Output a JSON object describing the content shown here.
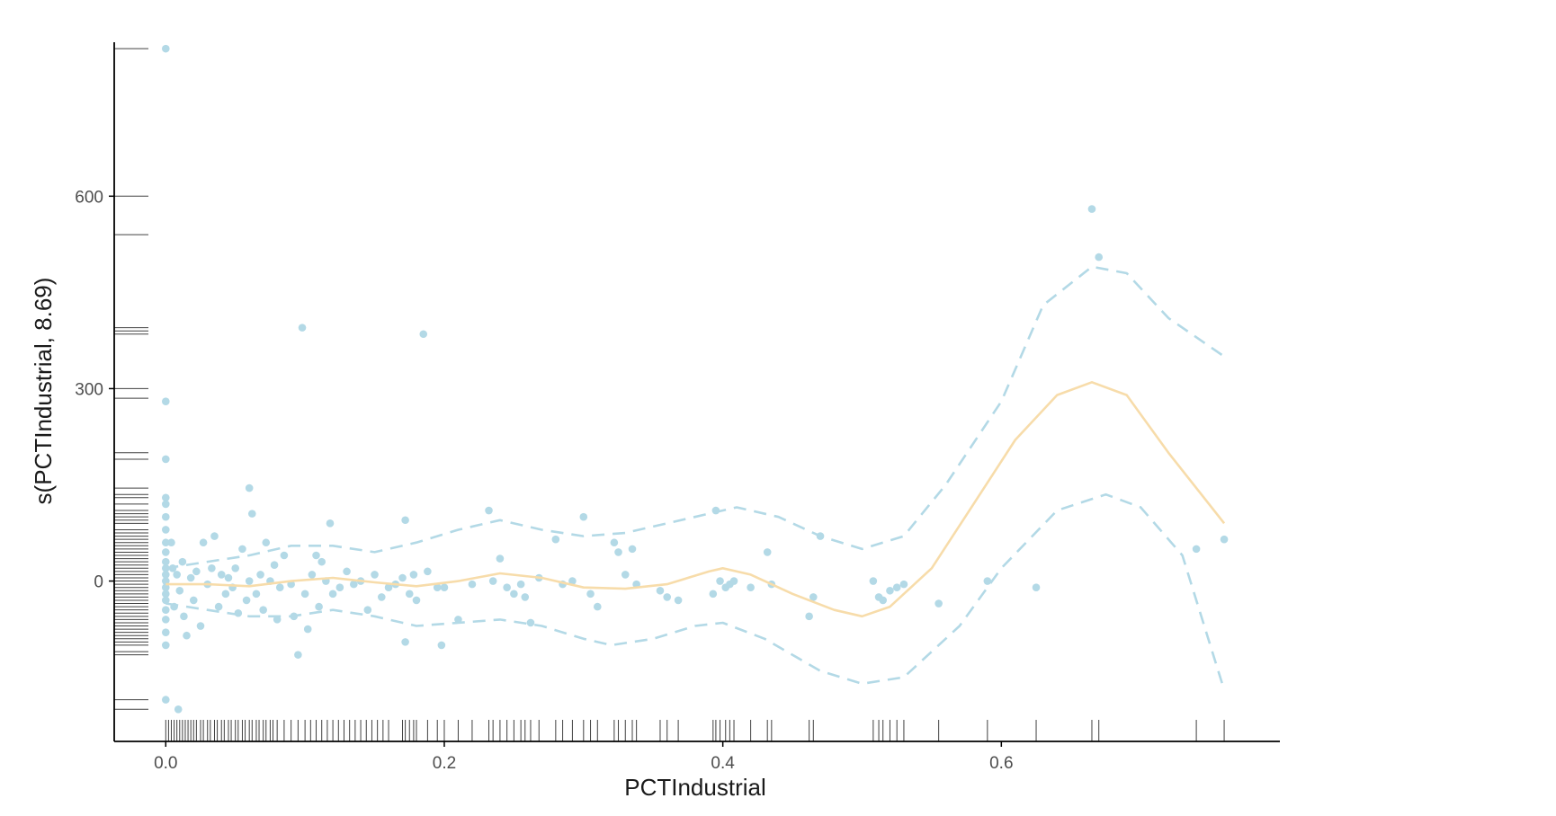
{
  "chart_data": {
    "type": "scatter",
    "title": "",
    "xlabel": "PCTIndustrial",
    "ylabel": "s(PCTIndustrial, 8.69)",
    "xlim": [
      -0.037,
      0.8
    ],
    "ylim": [
      -250,
      840
    ],
    "x_ticks": [
      {
        "value": 0.0,
        "label": "0.0"
      },
      {
        "value": 0.2,
        "label": "0.2"
      },
      {
        "value": 0.4,
        "label": "0.4"
      },
      {
        "value": 0.6,
        "label": "0.6"
      }
    ],
    "y_ticks": [
      {
        "value": 0,
        "label": "0"
      },
      {
        "value": 300,
        "label": "300"
      },
      {
        "value": 600,
        "label": "600"
      }
    ],
    "grid": false,
    "legend": "none",
    "colors": {
      "points": "#b3d9e6",
      "smooth": "#f7dcaa",
      "confidence": "#b3d9e6",
      "rug": "#000000",
      "axis": "#000000"
    },
    "series": [
      {
        "kind": "partial-residual-points",
        "points": [
          [
            0.0,
            830
          ],
          [
            0.0,
            280
          ],
          [
            0.0,
            190
          ],
          [
            0.0,
            130
          ],
          [
            0.0,
            120
          ],
          [
            0.0,
            100
          ],
          [
            0.0,
            80
          ],
          [
            0.0,
            60
          ],
          [
            0.0,
            45
          ],
          [
            0.0,
            30
          ],
          [
            0.0,
            20
          ],
          [
            0.0,
            10
          ],
          [
            0.0,
            0
          ],
          [
            0.0,
            -10
          ],
          [
            0.0,
            -20
          ],
          [
            0.0,
            -30
          ],
          [
            0.0,
            -45
          ],
          [
            0.0,
            -60
          ],
          [
            0.0,
            -80
          ],
          [
            0.0,
            -100
          ],
          [
            0.0,
            -185
          ],
          [
            0.009,
            -200
          ],
          [
            0.004,
            60
          ],
          [
            0.005,
            20
          ],
          [
            0.006,
            -40
          ],
          [
            0.008,
            10
          ],
          [
            0.01,
            -15
          ],
          [
            0.012,
            30
          ],
          [
            0.013,
            -55
          ],
          [
            0.015,
            -85
          ],
          [
            0.018,
            5
          ],
          [
            0.02,
            -30
          ],
          [
            0.022,
            15
          ],
          [
            0.025,
            -70
          ],
          [
            0.027,
            60
          ],
          [
            0.03,
            -5
          ],
          [
            0.033,
            20
          ],
          [
            0.035,
            70
          ],
          [
            0.038,
            -40
          ],
          [
            0.04,
            10
          ],
          [
            0.043,
            -20
          ],
          [
            0.045,
            5
          ],
          [
            0.048,
            -10
          ],
          [
            0.05,
            20
          ],
          [
            0.052,
            -50
          ],
          [
            0.055,
            50
          ],
          [
            0.058,
            -30
          ],
          [
            0.06,
            0
          ],
          [
            0.06,
            145
          ],
          [
            0.062,
            105
          ],
          [
            0.065,
            -20
          ],
          [
            0.068,
            10
          ],
          [
            0.07,
            -45
          ],
          [
            0.072,
            60
          ],
          [
            0.075,
            0
          ],
          [
            0.078,
            25
          ],
          [
            0.08,
            -60
          ],
          [
            0.082,
            -10
          ],
          [
            0.085,
            40
          ],
          [
            0.09,
            -5
          ],
          [
            0.092,
            -55
          ],
          [
            0.095,
            -115
          ],
          [
            0.098,
            395
          ],
          [
            0.1,
            -20
          ],
          [
            0.102,
            -75
          ],
          [
            0.105,
            10
          ],
          [
            0.108,
            40
          ],
          [
            0.11,
            -40
          ],
          [
            0.112,
            30
          ],
          [
            0.115,
            0
          ],
          [
            0.118,
            90
          ],
          [
            0.12,
            -20
          ],
          [
            0.125,
            -10
          ],
          [
            0.13,
            15
          ],
          [
            0.135,
            -5
          ],
          [
            0.14,
            0
          ],
          [
            0.145,
            -45
          ],
          [
            0.15,
            10
          ],
          [
            0.155,
            -25
          ],
          [
            0.16,
            -10
          ],
          [
            0.165,
            -5
          ],
          [
            0.17,
            5
          ],
          [
            0.172,
            95
          ],
          [
            0.172,
            -95
          ],
          [
            0.175,
            -20
          ],
          [
            0.178,
            10
          ],
          [
            0.18,
            -30
          ],
          [
            0.185,
            385
          ],
          [
            0.188,
            15
          ],
          [
            0.195,
            -10
          ],
          [
            0.198,
            -100
          ],
          [
            0.2,
            -10
          ],
          [
            0.21,
            -60
          ],
          [
            0.22,
            -5
          ],
          [
            0.232,
            110
          ],
          [
            0.235,
            0
          ],
          [
            0.24,
            35
          ],
          [
            0.245,
            -10
          ],
          [
            0.25,
            -20
          ],
          [
            0.255,
            -5
          ],
          [
            0.258,
            -25
          ],
          [
            0.262,
            -65
          ],
          [
            0.268,
            5
          ],
          [
            0.28,
            65
          ],
          [
            0.285,
            -5
          ],
          [
            0.292,
            0
          ],
          [
            0.3,
            100
          ],
          [
            0.305,
            -20
          ],
          [
            0.31,
            -40
          ],
          [
            0.322,
            60
          ],
          [
            0.325,
            45
          ],
          [
            0.33,
            10
          ],
          [
            0.335,
            50
          ],
          [
            0.338,
            -5
          ],
          [
            0.355,
            -15
          ],
          [
            0.36,
            -25
          ],
          [
            0.368,
            -30
          ],
          [
            0.393,
            -20
          ],
          [
            0.395,
            110
          ],
          [
            0.398,
            0
          ],
          [
            0.402,
            -10
          ],
          [
            0.405,
            -5
          ],
          [
            0.408,
            0
          ],
          [
            0.42,
            -10
          ],
          [
            0.432,
            45
          ],
          [
            0.435,
            -5
          ],
          [
            0.462,
            -55
          ],
          [
            0.465,
            -25
          ],
          [
            0.47,
            70
          ],
          [
            0.508,
            0
          ],
          [
            0.512,
            -25
          ],
          [
            0.515,
            -30
          ],
          [
            0.52,
            -15
          ],
          [
            0.525,
            -10
          ],
          [
            0.53,
            -5
          ],
          [
            0.555,
            -35
          ],
          [
            0.59,
            0
          ],
          [
            0.625,
            -10
          ],
          [
            0.665,
            580
          ],
          [
            0.67,
            505
          ],
          [
            0.74,
            50
          ],
          [
            0.76,
            65
          ]
        ]
      },
      {
        "kind": "smooth-estimate",
        "line_style": "solid",
        "points": [
          [
            0.0,
            -5
          ],
          [
            0.03,
            -5
          ],
          [
            0.06,
            -8
          ],
          [
            0.09,
            0
          ],
          [
            0.12,
            5
          ],
          [
            0.15,
            -2
          ],
          [
            0.18,
            -8
          ],
          [
            0.21,
            0
          ],
          [
            0.24,
            12
          ],
          [
            0.27,
            5
          ],
          [
            0.3,
            -10
          ],
          [
            0.33,
            -12
          ],
          [
            0.36,
            -5
          ],
          [
            0.39,
            15
          ],
          [
            0.4,
            20
          ],
          [
            0.42,
            10
          ],
          [
            0.45,
            -20
          ],
          [
            0.48,
            -45
          ],
          [
            0.5,
            -55
          ],
          [
            0.52,
            -40
          ],
          [
            0.55,
            20
          ],
          [
            0.58,
            120
          ],
          [
            0.61,
            220
          ],
          [
            0.64,
            290
          ],
          [
            0.665,
            310
          ],
          [
            0.69,
            290
          ],
          [
            0.72,
            200
          ],
          [
            0.76,
            90
          ]
        ]
      },
      {
        "kind": "upper-confidence-band",
        "line_style": "dashed",
        "points": [
          [
            0.0,
            20
          ],
          [
            0.03,
            30
          ],
          [
            0.06,
            40
          ],
          [
            0.09,
            55
          ],
          [
            0.12,
            55
          ],
          [
            0.15,
            45
          ],
          [
            0.18,
            60
          ],
          [
            0.21,
            80
          ],
          [
            0.24,
            95
          ],
          [
            0.27,
            80
          ],
          [
            0.3,
            70
          ],
          [
            0.33,
            75
          ],
          [
            0.36,
            90
          ],
          [
            0.39,
            105
          ],
          [
            0.41,
            115
          ],
          [
            0.44,
            100
          ],
          [
            0.47,
            70
          ],
          [
            0.5,
            50
          ],
          [
            0.53,
            70
          ],
          [
            0.56,
            150
          ],
          [
            0.6,
            280
          ],
          [
            0.63,
            430
          ],
          [
            0.665,
            490
          ],
          [
            0.69,
            480
          ],
          [
            0.72,
            410
          ],
          [
            0.76,
            350
          ]
        ]
      },
      {
        "kind": "lower-confidence-band",
        "line_style": "dashed",
        "points": [
          [
            0.0,
            -35
          ],
          [
            0.03,
            -45
          ],
          [
            0.06,
            -55
          ],
          [
            0.09,
            -55
          ],
          [
            0.12,
            -45
          ],
          [
            0.15,
            -55
          ],
          [
            0.18,
            -70
          ],
          [
            0.21,
            -65
          ],
          [
            0.24,
            -60
          ],
          [
            0.27,
            -70
          ],
          [
            0.3,
            -90
          ],
          [
            0.32,
            -100
          ],
          [
            0.35,
            -90
          ],
          [
            0.38,
            -70
          ],
          [
            0.4,
            -65
          ],
          [
            0.43,
            -90
          ],
          [
            0.47,
            -140
          ],
          [
            0.5,
            -160
          ],
          [
            0.53,
            -150
          ],
          [
            0.57,
            -70
          ],
          [
            0.6,
            20
          ],
          [
            0.64,
            110
          ],
          [
            0.675,
            135
          ],
          [
            0.7,
            115
          ],
          [
            0.73,
            40
          ],
          [
            0.76,
            -170
          ]
        ]
      }
    ],
    "rug_x": [
      0.0,
      0.002,
      0.004,
      0.006,
      0.008,
      0.01,
      0.012,
      0.014,
      0.016,
      0.018,
      0.02,
      0.022,
      0.025,
      0.027,
      0.03,
      0.032,
      0.035,
      0.037,
      0.04,
      0.042,
      0.045,
      0.047,
      0.05,
      0.052,
      0.055,
      0.057,
      0.06,
      0.062,
      0.065,
      0.067,
      0.07,
      0.072,
      0.075,
      0.077,
      0.08,
      0.085,
      0.09,
      0.095,
      0.1,
      0.104,
      0.108,
      0.112,
      0.116,
      0.12,
      0.124,
      0.128,
      0.132,
      0.136,
      0.14,
      0.144,
      0.148,
      0.152,
      0.156,
      0.16,
      0.17,
      0.172,
      0.175,
      0.178,
      0.18,
      0.188,
      0.195,
      0.2,
      0.21,
      0.22,
      0.232,
      0.235,
      0.24,
      0.245,
      0.25,
      0.255,
      0.258,
      0.262,
      0.268,
      0.28,
      0.285,
      0.292,
      0.3,
      0.305,
      0.31,
      0.322,
      0.325,
      0.33,
      0.335,
      0.338,
      0.355,
      0.36,
      0.368,
      0.393,
      0.395,
      0.398,
      0.402,
      0.405,
      0.408,
      0.42,
      0.432,
      0.435,
      0.462,
      0.465,
      0.508,
      0.512,
      0.515,
      0.52,
      0.525,
      0.53,
      0.555,
      0.59,
      0.625,
      0.665,
      0.67,
      0.74,
      0.76
    ],
    "rug_y": [
      830,
      600,
      540,
      395,
      390,
      385,
      300,
      285,
      200,
      190,
      145,
      135,
      130,
      120,
      110,
      105,
      100,
      95,
      90,
      80,
      75,
      70,
      65,
      60,
      55,
      50,
      45,
      40,
      35,
      30,
      25,
      20,
      15,
      10,
      5,
      0,
      -5,
      -10,
      -15,
      -20,
      -25,
      -30,
      -35,
      -40,
      -45,
      -50,
      -55,
      -60,
      -65,
      -70,
      -75,
      -80,
      -85,
      -90,
      -95,
      -100,
      -110,
      -115,
      -185,
      -200
    ]
  }
}
